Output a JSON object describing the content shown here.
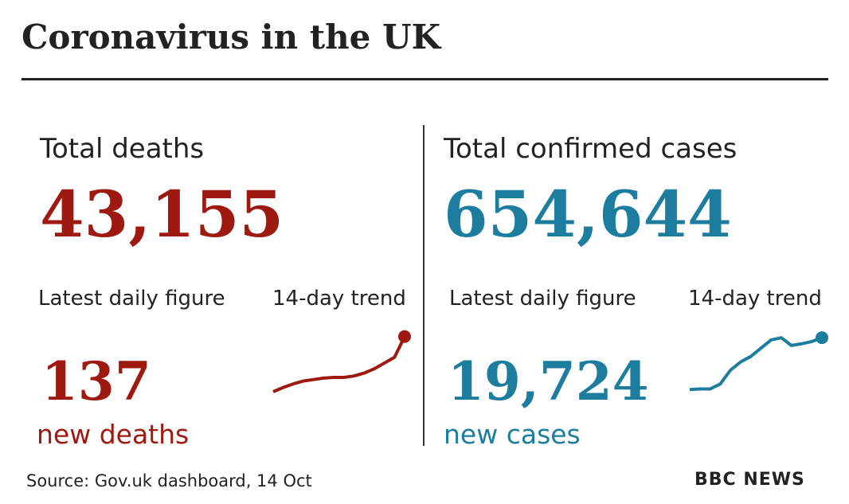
{
  "title": "Coronavirus in the UK",
  "panels": [
    {
      "heading": "Total deaths",
      "total": "43,155",
      "daily_label": "Latest daily figure",
      "trend_label": "14-day trend",
      "daily": "137",
      "daily_unit": "new deaths",
      "color": "#9e1a10",
      "trend": {
        "values": [
          60,
          66,
          71,
          75,
          77,
          79,
          80,
          80,
          82,
          86,
          92,
          100,
          108,
          137
        ],
        "ylim": [
          40,
          140
        ]
      }
    },
    {
      "heading": "Total confirmed cases",
      "total": "654,644",
      "daily_label": "Latest daily figure",
      "trend_label": "14-day trend",
      "daily": "19,724",
      "daily_unit": "new cases",
      "color": "#1c7d9e",
      "trend": {
        "values": [
          7000,
          7100,
          7100,
          8000,
          10500,
          12000,
          13000,
          14500,
          16000,
          16400,
          15000,
          15300,
          15700,
          16400
        ],
        "ylim": [
          4000,
          17000
        ]
      }
    }
  ],
  "source": "Source: Gov.uk dashboard, 14 Oct",
  "logo": "BBC NEWS"
}
